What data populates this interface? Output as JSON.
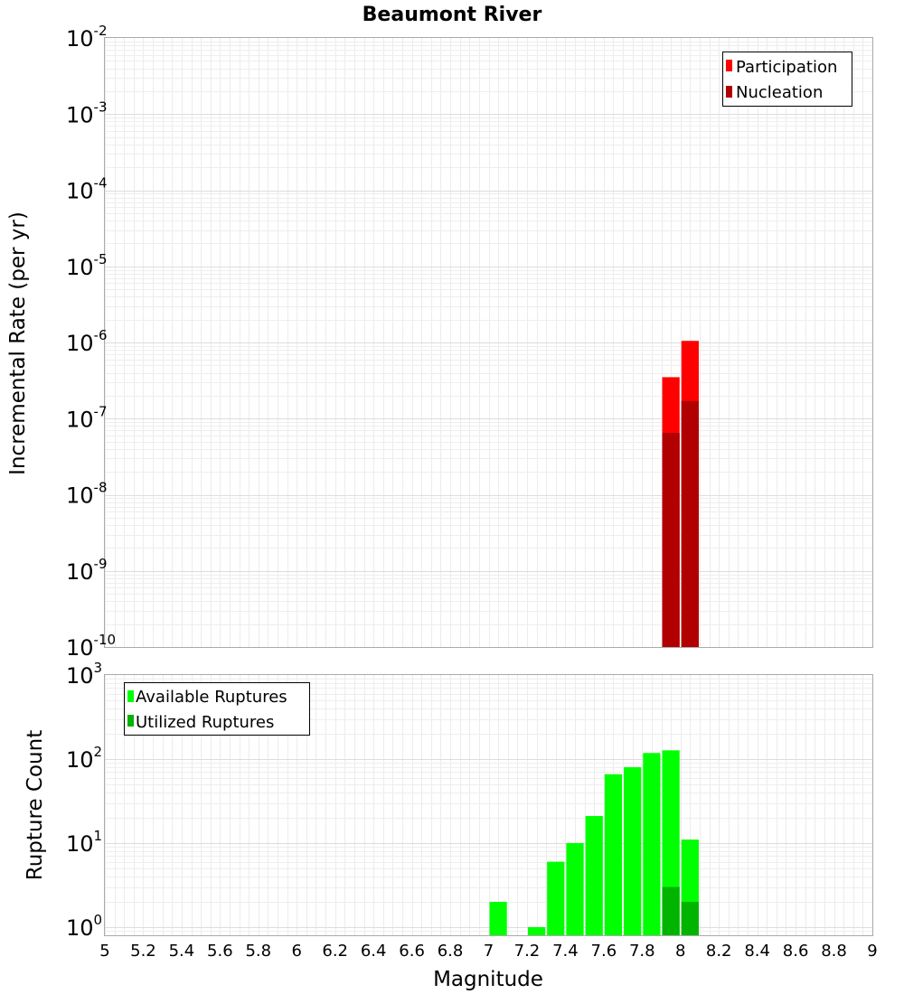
{
  "chart_data": [
    {
      "type": "bar",
      "panel": "top",
      "title": "Beaumont River",
      "xlabel": "",
      "ylabel": "Incremental Rate (per yr)",
      "yscale": "log",
      "ylim": [
        1e-10,
        0.01
      ],
      "ytick_exponents": [
        "-2",
        "-3",
        "-4",
        "-5",
        "-6",
        "-7",
        "-8",
        "-9",
        "-10"
      ],
      "xlim": [
        5,
        9
      ],
      "bin_width": 0.1,
      "legend": {
        "position": "top-right",
        "entries": [
          "Participation",
          "Nucleation"
        ]
      },
      "series": [
        {
          "name": "Participation",
          "color": "#ff0000",
          "x": [
            7.95,
            8.05
          ],
          "values": [
            3.5e-07,
            1.05e-06
          ]
        },
        {
          "name": "Nucleation",
          "color": "#b00000",
          "x": [
            7.95,
            8.05
          ],
          "values": [
            6.5e-08,
            1.7e-07
          ]
        }
      ]
    },
    {
      "type": "bar",
      "panel": "bottom",
      "xlabel": "Magnitude",
      "ylabel": "Rupture Count",
      "yscale": "log",
      "ylim": [
        0.8,
        1000
      ],
      "ytick_exponents": [
        "3",
        "2",
        "1",
        "0"
      ],
      "xlim": [
        5,
        9
      ],
      "xticks": [
        "5",
        "5.2",
        "5.4",
        "5.6",
        "5.8",
        "6",
        "6.2",
        "6.4",
        "6.6",
        "6.8",
        "7",
        "7.2",
        "7.4",
        "7.6",
        "7.8",
        "8",
        "8.2",
        "8.4",
        "8.6",
        "8.8",
        "9"
      ],
      "bin_width": 0.1,
      "legend": {
        "position": "top-left",
        "entries": [
          "Available Ruptures",
          "Utilized Ruptures"
        ]
      },
      "series": [
        {
          "name": "Available Ruptures",
          "color": "#00ff00",
          "x": [
            7.05,
            7.25,
            7.35,
            7.45,
            7.55,
            7.65,
            7.75,
            7.85,
            7.95,
            8.05
          ],
          "values": [
            2,
            1,
            6,
            10,
            21,
            66,
            80,
            118,
            127,
            11
          ]
        },
        {
          "name": "Utilized Ruptures",
          "color": "#00b400",
          "x": [
            7.95,
            8.05
          ],
          "values": [
            3,
            2
          ]
        }
      ]
    }
  ]
}
